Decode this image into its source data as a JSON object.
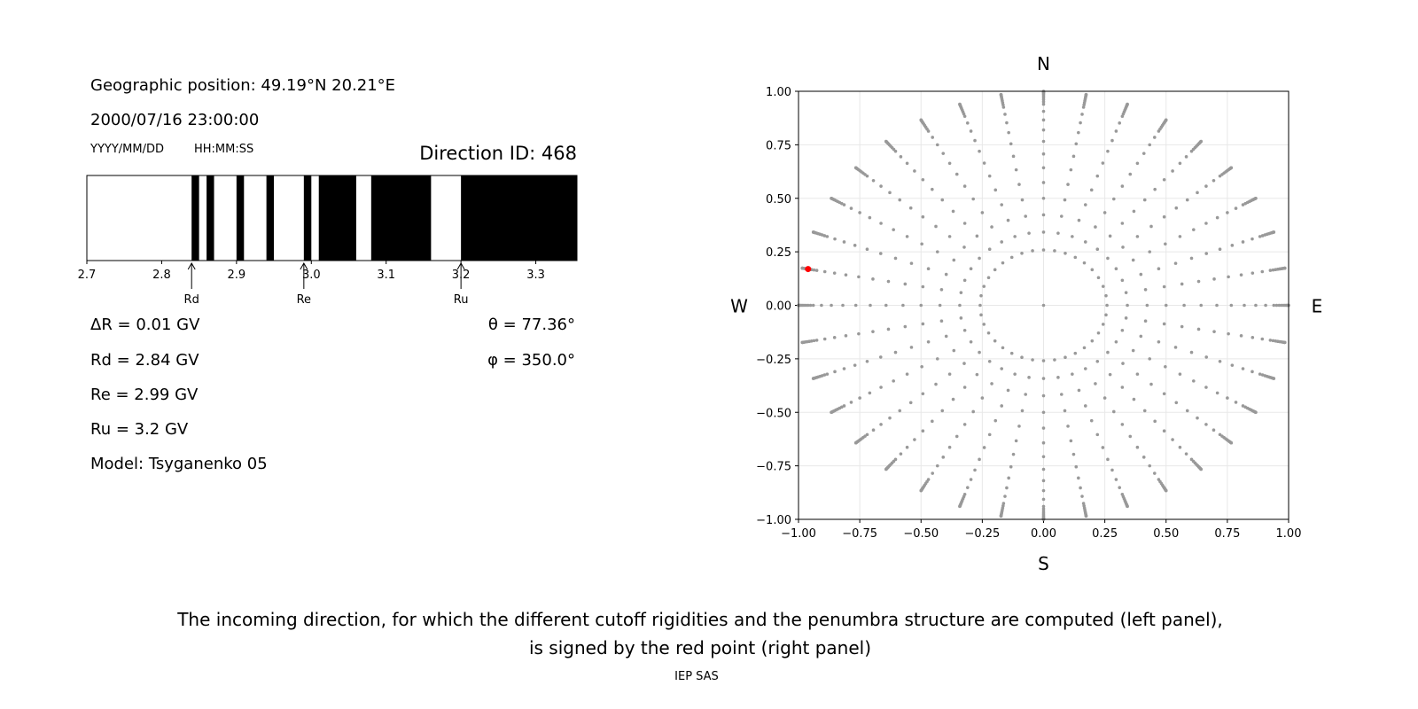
{
  "left_panel": {
    "position": "Geographic position: 49.19°N 20.21°E",
    "datetime": "2000/07/16 23:00:00",
    "date_format": "YYYY/MM/DD",
    "time_format": "HH:MM:SS",
    "direction_id": "Direction ID: 468",
    "delta_r": "ΔR = 0.01 GV",
    "rd": "Rd = 2.84 GV",
    "re": "Re = 2.99 GV",
    "ru": "Ru = 3.2 GV",
    "model": "Model: Tsyganenko 05",
    "theta": "θ = 77.36°",
    "phi": "φ = 350.0°"
  },
  "caption": {
    "line1": "The incoming direction, for which the different cutoff rigidities and the penumbra structure are computed (left panel),",
    "line2": "is signed by the red point (right panel)",
    "credit": "IEP SAS"
  },
  "chart_data": [
    {
      "type": "bar",
      "xlim": [
        2.7,
        3.355
      ],
      "xticks": [
        2.7,
        2.8,
        2.9,
        3.0,
        3.1,
        3.2,
        3.3
      ],
      "xtick_labels": [
        "2.7",
        "2.8",
        "2.9",
        "3.0",
        "3.1",
        "3.2",
        "3.3"
      ],
      "forbidden_intervals": [
        [
          2.84,
          2.85
        ],
        [
          2.86,
          2.87
        ],
        [
          2.9,
          2.91
        ],
        [
          2.94,
          2.95
        ],
        [
          2.99,
          3.0
        ],
        [
          3.01,
          3.06
        ],
        [
          3.08,
          3.16
        ],
        [
          3.2,
          3.355
        ]
      ],
      "markers": [
        {
          "label": "Rd",
          "value": 2.84
        },
        {
          "label": "Re",
          "value": 2.99
        },
        {
          "label": "Ru",
          "value": 3.2
        }
      ],
      "colors": {
        "forbidden": "#000000",
        "allowed": "#ffffff"
      }
    },
    {
      "type": "scatter",
      "xlim": [
        -1,
        1
      ],
      "ylim": [
        -1,
        1
      ],
      "ticks": [
        -1,
        -0.75,
        -0.5,
        -0.25,
        0,
        0.25,
        0.5,
        0.75,
        1
      ],
      "tick_labels": [
        "−1.00",
        "−0.75",
        "−0.50",
        "−0.25",
        "0.00",
        "0.25",
        "0.50",
        "0.75",
        "1.00"
      ],
      "grid": true,
      "compass": {
        "n": "N",
        "s": "S",
        "e": "E",
        "w": "W"
      },
      "grid_azimuth_step_deg": 10,
      "grid_zenith_deg": [
        15,
        20,
        25,
        30,
        35,
        40,
        45,
        50,
        55,
        60,
        65,
        70,
        72,
        74,
        76,
        78,
        80,
        82,
        84,
        86,
        88,
        90
      ],
      "selected": {
        "theta": 77.36,
        "phi": 350.0
      },
      "colors": {
        "grid_points": "#999999",
        "selected": "#ff0000"
      }
    }
  ]
}
